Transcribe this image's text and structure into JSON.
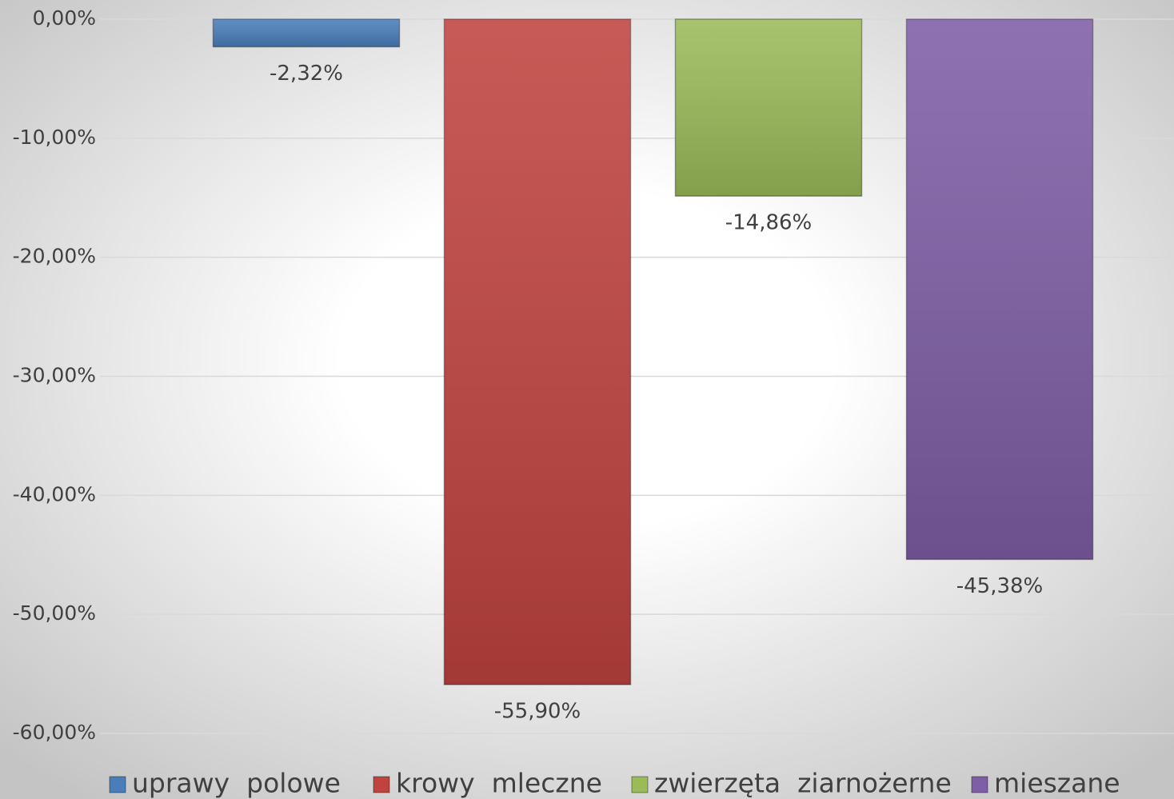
{
  "chart_data": {
    "type": "bar",
    "categories": [
      null
    ],
    "series": [
      {
        "name": "uprawy  polowe",
        "color": "#4a7ebb",
        "values": [
          -2.32
        ],
        "value_labels": [
          "-2,32%"
        ]
      },
      {
        "name": "krowy  mleczne",
        "color": "#c0433f",
        "values": [
          -55.9
        ],
        "value_labels": [
          "-55,90%"
        ]
      },
      {
        "name": "zwierzęta  ziarnożerne",
        "color": "#9bbb59",
        "values": [
          -14.86
        ],
        "value_labels": [
          "-14,86%"
        ]
      },
      {
        "name": "mieszane",
        "color": "#7e5ea6",
        "values": [
          -45.38
        ],
        "value_labels": [
          "-45,38%"
        ]
      }
    ],
    "ylim": [
      -60,
      0
    ],
    "yticks": [
      {
        "value": 0,
        "label": "0,00%"
      },
      {
        "value": -10,
        "label": "-10,00%"
      },
      {
        "value": -20,
        "label": "-20,00%"
      },
      {
        "value": -30,
        "label": "-30,00%"
      },
      {
        "value": -40,
        "label": "-40,00%"
      },
      {
        "value": -50,
        "label": "-50,00%"
      },
      {
        "value": -60,
        "label": "-60,00%"
      }
    ],
    "grid": true,
    "legend": "bottom"
  }
}
